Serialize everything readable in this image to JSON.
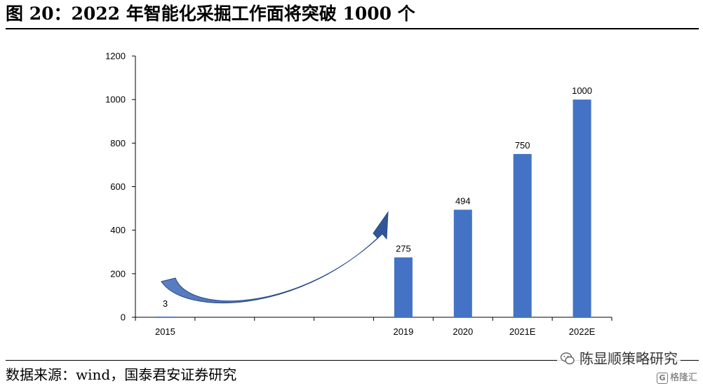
{
  "header": {
    "title": "图 20：2022 年智能化采掘工作面将突破 1000 个"
  },
  "footer": {
    "source": "数据来源：wind，国泰君安证券研究",
    "watermark": "陈显顺策略研究",
    "logo_text": "格隆汇",
    "logo_mark": "G"
  },
  "chart_data": {
    "type": "bar",
    "categories": [
      "2015",
      "",
      "",
      "",
      "2019",
      "2020",
      "2021E",
      "2022E"
    ],
    "values": [
      3,
      null,
      null,
      null,
      275,
      494,
      750,
      1000
    ],
    "data_labels": [
      "3",
      "",
      "",
      "",
      "275",
      "494",
      "750",
      "1000"
    ],
    "y_ticks": [
      "0",
      "200",
      "400",
      "600",
      "800",
      "1000",
      "1200"
    ],
    "ylim": [
      0,
      1200
    ],
    "grid": false,
    "legend": "none",
    "title": "",
    "xlabel": "",
    "ylabel": "",
    "annotation": "curved upward arrow from 2015 toward 2019",
    "colors": {
      "bar": "#4472C4",
      "arrow": "#3A5BA0",
      "axis": "#000000"
    }
  }
}
